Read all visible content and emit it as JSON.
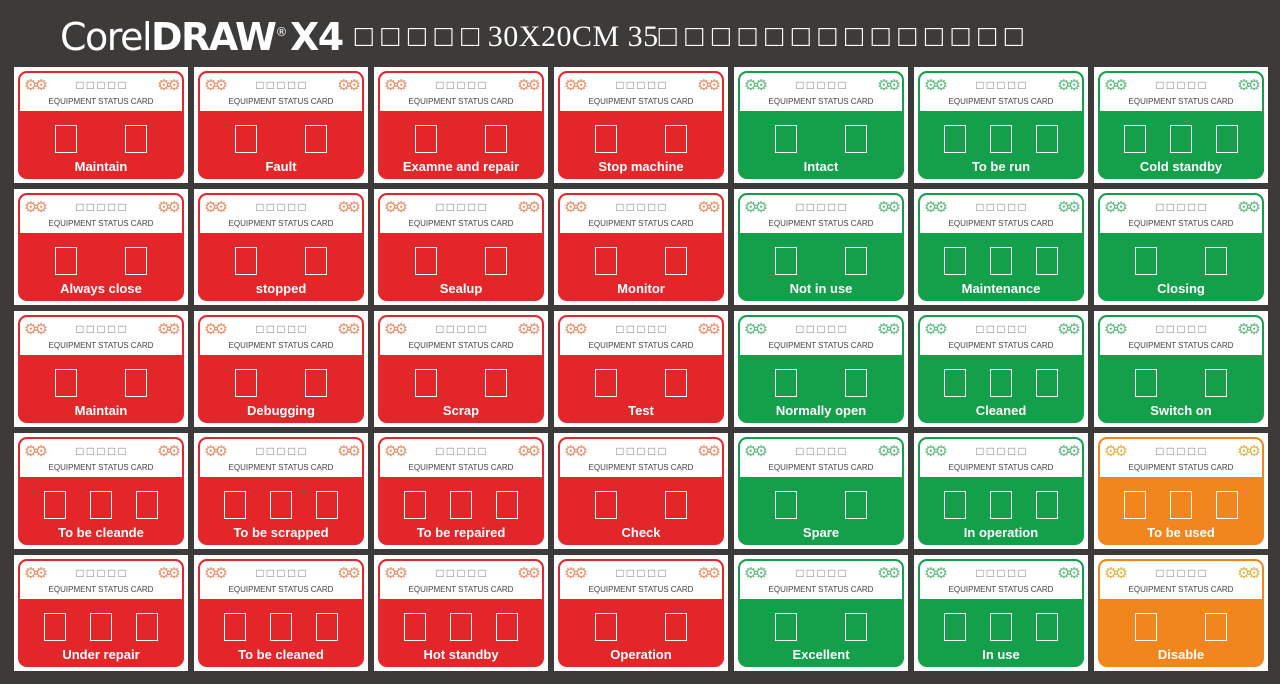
{
  "header": {
    "logo_thin": "Corel",
    "logo_bold": "DRAW",
    "logo_reg": "®",
    "logo_version": "X4",
    "subtitle": "□ □ □ □ □ 30X20CM 35□ □ □ □ □ □ □ □ □ □ □ □ □ □"
  },
  "colors": {
    "red": "#e3262a",
    "green": "#14a04b",
    "orange": "#f1861f",
    "gear_red": "#e8906a",
    "gear_green": "#5dbb80",
    "gear_orange": "#e6b23c"
  },
  "card_common": {
    "title": "EQUIPMENT STATUS CARD",
    "cn_placeholder": "□ □ □ □ □",
    "gear_icon": "gear-icon"
  },
  "cards": [
    {
      "label": "Maintain",
      "color": "red",
      "boxes": 2
    },
    {
      "label": "Fault",
      "color": "red",
      "boxes": 2
    },
    {
      "label": "Examne and repair",
      "color": "red",
      "boxes": 2
    },
    {
      "label": "Stop machine",
      "color": "red",
      "boxes": 2
    },
    {
      "label": "Intact",
      "color": "green",
      "boxes": 2
    },
    {
      "label": "To  be  run",
      "color": "green",
      "boxes": 3
    },
    {
      "label": "Cold standby",
      "color": "green",
      "boxes": 3
    },
    {
      "label": "Always close",
      "color": "red",
      "boxes": 2
    },
    {
      "label": "stopped",
      "color": "red",
      "boxes": 2
    },
    {
      "label": "Sealup",
      "color": "red",
      "boxes": 2
    },
    {
      "label": "Monitor",
      "color": "red",
      "boxes": 2
    },
    {
      "label": "Not  in  use",
      "color": "green",
      "boxes": 2
    },
    {
      "label": "Maintenance",
      "color": "green",
      "boxes": 3
    },
    {
      "label": "Closing",
      "color": "green",
      "boxes": 2
    },
    {
      "label": "Maintain",
      "color": "red",
      "boxes": 2
    },
    {
      "label": "Debugging",
      "color": "red",
      "boxes": 2
    },
    {
      "label": "Scrap",
      "color": "red",
      "boxes": 2
    },
    {
      "label": "Test",
      "color": "red",
      "boxes": 2
    },
    {
      "label": "Normally open",
      "color": "green",
      "boxes": 2
    },
    {
      "label": "Cleaned",
      "color": "green",
      "boxes": 3
    },
    {
      "label": "Switch on",
      "color": "green",
      "boxes": 2
    },
    {
      "label": "To be cleande",
      "color": "red",
      "boxes": 3
    },
    {
      "label": "To be scrapped",
      "color": "red",
      "boxes": 3
    },
    {
      "label": "To be repaired",
      "color": "red",
      "boxes": 3
    },
    {
      "label": "Check",
      "color": "red",
      "boxes": 2
    },
    {
      "label": "Spare",
      "color": "green",
      "boxes": 2
    },
    {
      "label": "In operation",
      "color": "green",
      "boxes": 3
    },
    {
      "label": "To  be  used",
      "color": "orange",
      "boxes": 3
    },
    {
      "label": "Under repair",
      "color": "red",
      "boxes": 3
    },
    {
      "label": "To be cleaned",
      "color": "red",
      "boxes": 3
    },
    {
      "label": "Hot standby",
      "color": "red",
      "boxes": 3
    },
    {
      "label": "Operation",
      "color": "red",
      "boxes": 2
    },
    {
      "label": "Excellent",
      "color": "green",
      "boxes": 2
    },
    {
      "label": "In use",
      "color": "green",
      "boxes": 3
    },
    {
      "label": "Disable",
      "color": "orange",
      "boxes": 2
    }
  ]
}
